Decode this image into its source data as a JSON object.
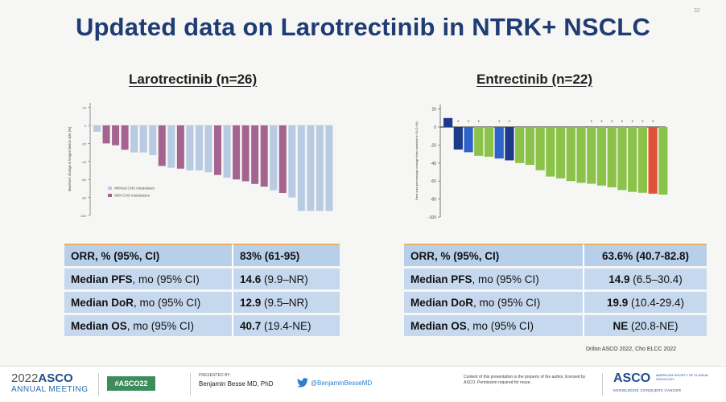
{
  "slide": {
    "number": "32",
    "title": "Updated data on Larotrectinib in NTRK+ NSCLC",
    "source": "Drilon ASCO 2022, Cho ELCC 2022"
  },
  "colors": {
    "title": "#1f3d74",
    "no_cns": "#b8cbe3",
    "with_cns": "#a4648f",
    "green": "#8bc34a",
    "blue_light": "#2f63c9",
    "blue_dark": "#1d3b8a",
    "red": "#e2523a"
  },
  "left_panel": {
    "heading": "Larotrectinib (n=26)",
    "table": [
      {
        "label": "ORR, % (95%, CI)",
        "label_cond": "",
        "value_bold": "83%",
        "value_rest": " (61-95)"
      },
      {
        "label": "Median PFS",
        "label_cond": ", mo (95% CI)",
        "value_bold": "14.6",
        "value_rest": " (9.9–NR)"
      },
      {
        "label": "Median DoR",
        "label_cond": ", mo (95% CI)",
        "value_bold": "12.9",
        "value_rest": " (9.5–NR)"
      },
      {
        "label": "Median OS",
        "label_cond": ", mo (95% CI)",
        "value_bold": "40.7",
        "value_rest": " (19.4-NE)"
      }
    ]
  },
  "right_panel": {
    "heading": "Entrectinib (n=22)",
    "table": [
      {
        "label": "ORR, % (95%, CI)",
        "label_cond": "",
        "value_bold": "63.6%",
        "value_rest": " (40.7-82.8)"
      },
      {
        "label": "Median PFS",
        "label_cond": ", mo (95% CI)",
        "value_bold": "14.9",
        "value_rest": " (6.5–30.4)"
      },
      {
        "label": "Median DoR",
        "label_cond": ", mo (95% CI)",
        "value_bold": "19.9",
        "value_rest": " (10.4-29.4)"
      },
      {
        "label": "Median OS",
        "label_cond": ", mo (95% CI)",
        "value_bold": "NE",
        "value_rest": " (20.8-NE)"
      }
    ]
  },
  "chart_data": [
    {
      "type": "bar",
      "title": "Larotrectinib waterfall",
      "ylabel": "Maximum change in longest lesion size (%)",
      "ylim": [
        -100,
        25
      ],
      "yticks": [
        20,
        0,
        -20,
        -40,
        -60,
        -80,
        -100
      ],
      "legend": [
        "Without CNS metastases",
        "With CNS metastases"
      ],
      "legend_position": "lower-left",
      "series": [
        {
          "name": "Patients",
          "values": [
            -7,
            -20,
            -22,
            -27,
            -30,
            -30,
            -33,
            -45,
            -47,
            -48,
            -50,
            -50,
            -52,
            -55,
            -58,
            -60,
            -62,
            -65,
            -68,
            -72,
            -75,
            -80,
            -95,
            -95,
            -95,
            -95
          ]
        }
      ],
      "cns": [
        0,
        1,
        1,
        1,
        0,
        0,
        0,
        1,
        0,
        1,
        0,
        0,
        0,
        1,
        0,
        1,
        1,
        1,
        1,
        0,
        1,
        0,
        0,
        0,
        0,
        0
      ]
    },
    {
      "type": "bar",
      "title": "Entrectinib waterfall",
      "ylabel": "Best sum percentage change from baseline in SLD (%)",
      "ylim": [
        -100,
        25
      ],
      "yticks": [
        20,
        0,
        -20,
        -40,
        -60,
        -80,
        -100
      ],
      "series": [
        {
          "name": "Patients",
          "values": [
            10,
            -25,
            -28,
            -32,
            -33,
            -35,
            -37,
            -40,
            -42,
            -48,
            -55,
            -57,
            -60,
            -62,
            -63,
            -65,
            -67,
            -70,
            -72,
            -73,
            -74,
            -75
          ]
        }
      ],
      "colors_index": [
        "blue_dark",
        "blue_dark",
        "blue_light",
        "green",
        "green",
        "blue_light",
        "blue_dark",
        "green",
        "green",
        "green",
        "green",
        "green",
        "green",
        "green",
        "green",
        "green",
        "green",
        "green",
        "green",
        "green",
        "red",
        "green"
      ],
      "asterisk_markers": [
        1,
        2,
        3,
        5,
        6,
        14,
        15,
        16,
        17,
        18,
        19,
        20
      ]
    }
  ],
  "footer": {
    "year": "2022",
    "brand": "ASCO",
    "meeting": "ANNUAL MEETING",
    "hashtag": "#ASCO22",
    "presented_by": "PRESENTED BY:",
    "presenter": "Benjamin Besse MD, PhD",
    "twitter": "@BenjaminBesseMD",
    "copyright": "Content of this presentation is the property of the author, licensed by ASCO. Permission required for reuse.",
    "society_brand": "ASCO",
    "society_name": "AMERICAN SOCIETY OF CLINICAL ONCOLOGY",
    "tagline": "KNOWLEDGE CONQUERS CANCER"
  }
}
